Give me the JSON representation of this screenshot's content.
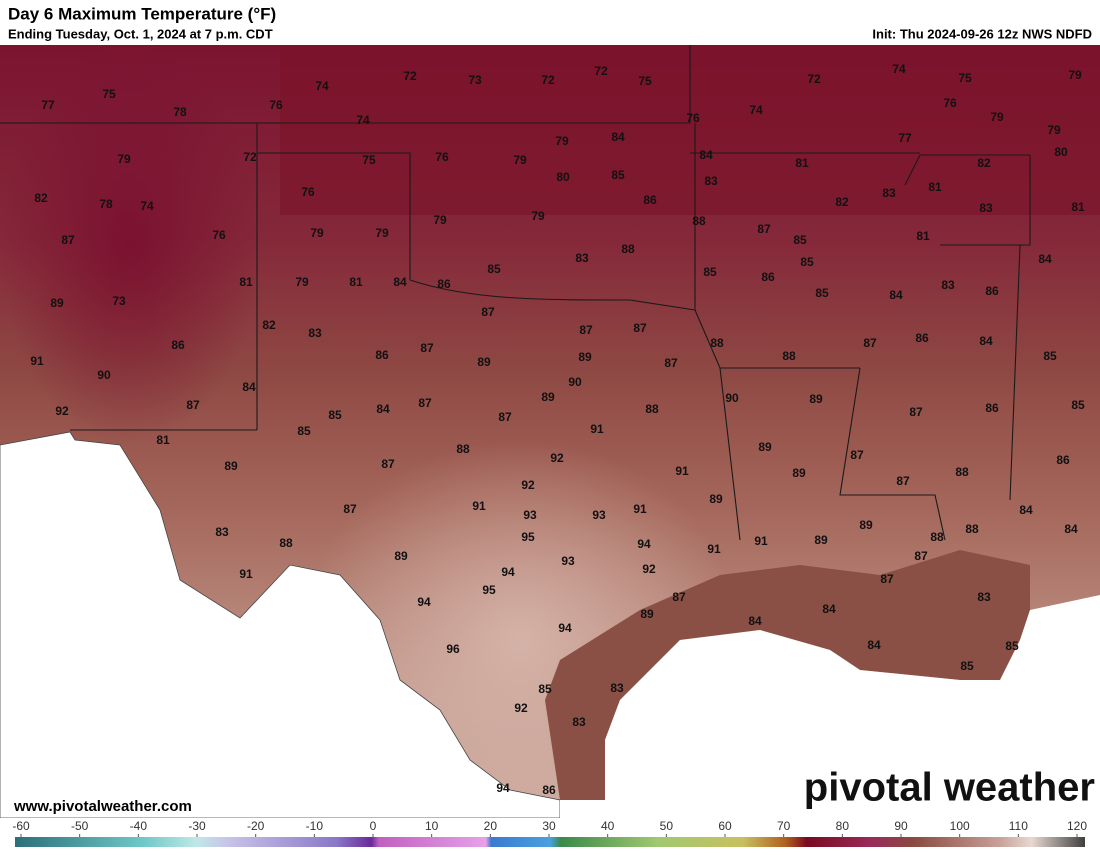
{
  "header": {
    "title": "Day 6 Maximum Temperature (°F)",
    "subtitle": "Ending Tuesday, Oct. 1, 2024 at 7 p.m. CDT",
    "init": "Init: Thu 2024-09-26 12z NWS NDFD"
  },
  "footer": {
    "website": "www.pivotalweather.com",
    "logo": "pivotal weather"
  },
  "map_labels": [
    72,
    73,
    72,
    72,
    75,
    74,
    76,
    77,
    75,
    78,
    74,
    72,
    74,
    75,
    79,
    76,
    79,
    79,
    80,
    76,
    74,
    77,
    82,
    81,
    83,
    81,
    79,
    84,
    76,
    79,
    75,
    72,
    79,
    80,
    85,
    84,
    83,
    81,
    83,
    82,
    82,
    78,
    74,
    76,
    86,
    88,
    87,
    85,
    81,
    79,
    79,
    87,
    79,
    79,
    76,
    88,
    83,
    85,
    84,
    85,
    86,
    85,
    83,
    86,
    81,
    79,
    81,
    84,
    86,
    85,
    84,
    89,
    73,
    87,
    87,
    87,
    82,
    83,
    88,
    87,
    86,
    84,
    86,
    86,
    87,
    89,
    89,
    87,
    88,
    85,
    91,
    90,
    90,
    84,
    90,
    89,
    92,
    87,
    85,
    84,
    87,
    88,
    87,
    89,
    87,
    86,
    85,
    91,
    85,
    81,
    88,
    89,
    87,
    86,
    92,
    87,
    89,
    91,
    89,
    87,
    88,
    92,
    89,
    87,
    91,
    93,
    93,
    91,
    89,
    88,
    88,
    84,
    84,
    83,
    88,
    95,
    94,
    91,
    89,
    91,
    87,
    89,
    93,
    92,
    91,
    94,
    87,
    95,
    87,
    84,
    83,
    94,
    89,
    84,
    94,
    84,
    85,
    96,
    85,
    83,
    85,
    92,
    83,
    94,
    86
  ],
  "colorbar": {
    "ticks": [
      -60,
      -50,
      -40,
      -30,
      -20,
      -10,
      0,
      10,
      20,
      30,
      40,
      50,
      60,
      70,
      80,
      90,
      100,
      110,
      120
    ]
  }
}
